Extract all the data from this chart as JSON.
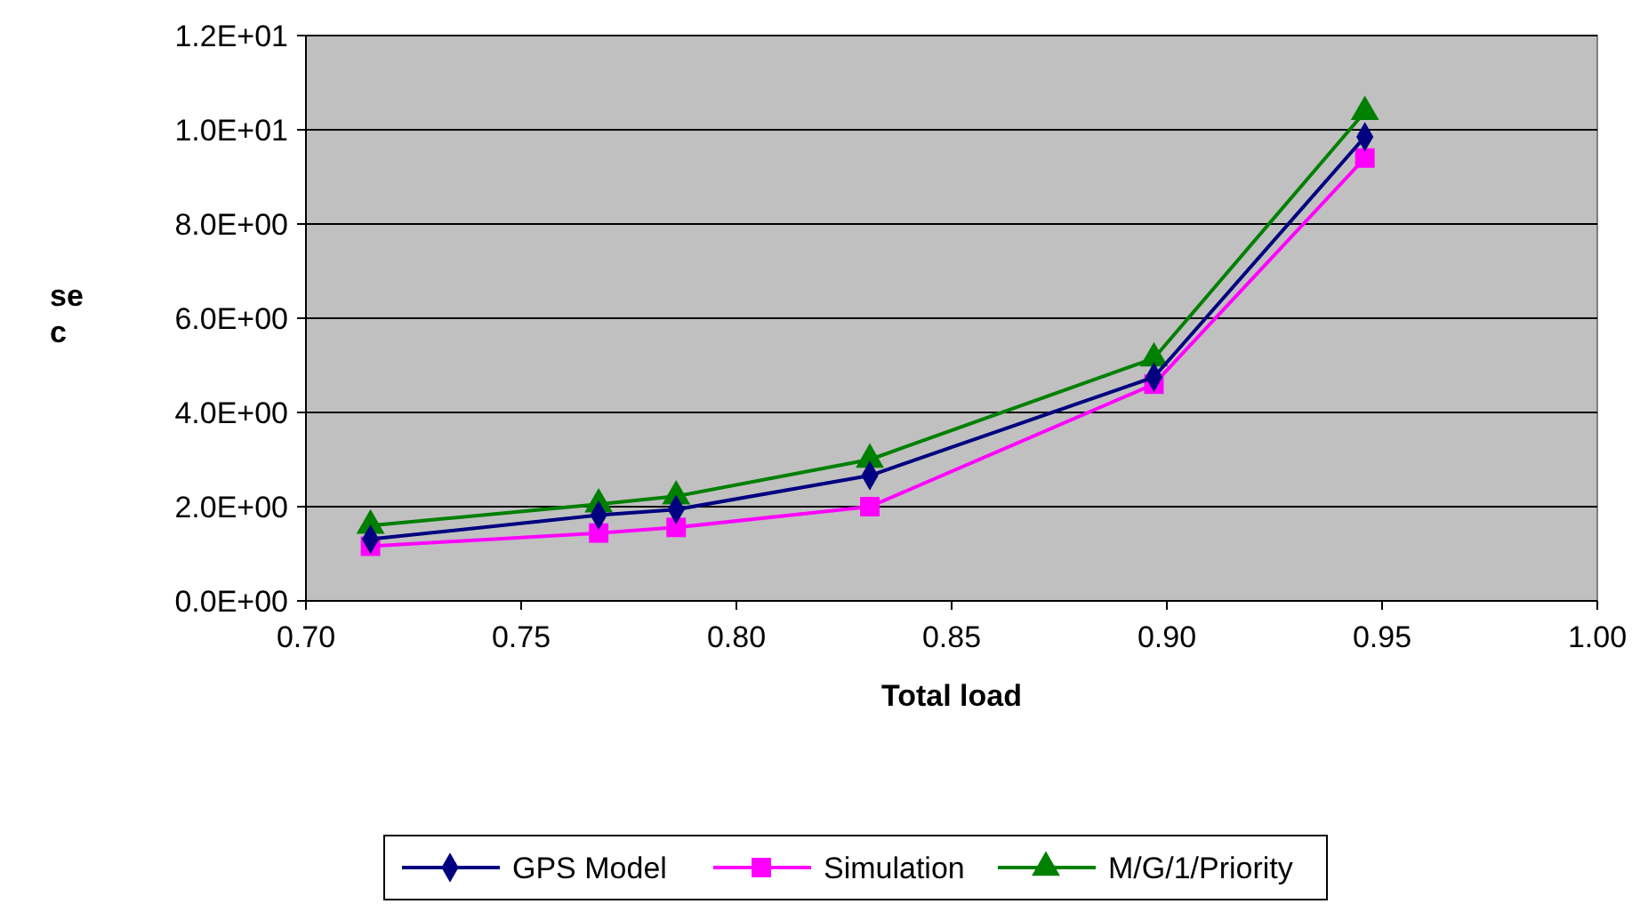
{
  "chart_data": {
    "type": "line",
    "xlabel": "Total load",
    "ylabel": "sec",
    "xlim": [
      0.7,
      1.0
    ],
    "xticks": [
      {
        "value": 0.7,
        "label": "0.70"
      },
      {
        "value": 0.75,
        "label": "0.75"
      },
      {
        "value": 0.8,
        "label": "0.80"
      },
      {
        "value": 0.85,
        "label": "0.85"
      },
      {
        "value": 0.9,
        "label": "0.90"
      },
      {
        "value": 0.95,
        "label": "0.95"
      },
      {
        "value": 1.0,
        "label": "1.00"
      }
    ],
    "ylim": [
      0,
      12
    ],
    "yticks": [
      {
        "value": 0,
        "label": "0.0E+00"
      },
      {
        "value": 2,
        "label": "2.0E+00"
      },
      {
        "value": 4,
        "label": "4.0E+00"
      },
      {
        "value": 6,
        "label": "6.0E+00"
      },
      {
        "value": 8,
        "label": "8.0E+00"
      },
      {
        "value": 10,
        "label": "1.0E+01"
      },
      {
        "value": 12,
        "label": "1.2E+01"
      }
    ],
    "x": [
      0.715,
      0.768,
      0.786,
      0.831,
      0.897,
      0.946
    ],
    "grid": "y",
    "legend": "bottom",
    "series": [
      {
        "name": "GPS Model",
        "color": "#000080",
        "marker": "diamond",
        "values": [
          1.31,
          1.82,
          1.94,
          2.66,
          4.75,
          9.85
        ]
      },
      {
        "name": "Simulation",
        "color": "#ff00ff",
        "marker": "square",
        "values": [
          1.16,
          1.44,
          1.56,
          2.0,
          4.6,
          9.4
        ]
      },
      {
        "name": "M/G/1/Priority",
        "color": "#008000",
        "marker": "triangle",
        "values": [
          1.6,
          2.05,
          2.22,
          3.0,
          5.15,
          10.38
        ]
      }
    ]
  }
}
